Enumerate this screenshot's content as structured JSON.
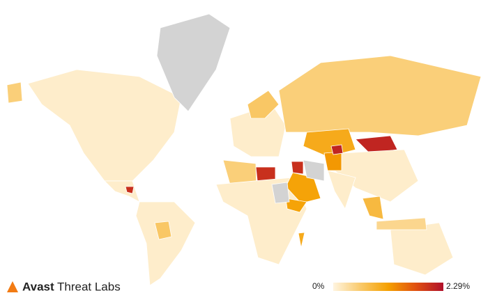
{
  "brand": {
    "name": "Avast",
    "product": "Threat Labs"
  },
  "map": {
    "values": [
      0.1,
      0.5,
      null,
      0.1,
      2.0,
      0.1,
      0.6,
      0.1,
      0.5,
      1.0,
      2.1,
      0.1,
      0.1,
      0.5,
      2.0,
      0.1,
      1.1,
      2.0,
      null,
      1.1,
      1.0,
      0.1,
      0.8,
      0.4,
      null,
      0.6,
      1.2,
      2.1
    ],
    "legend": {
      "ticks": [
        {
          "value": 0,
          "label": "0%"
        },
        {
          "value": 2.29,
          "label": "2.29%"
        }
      ],
      "colors": [
        "#fff5e0",
        "#f9c96a",
        "#f5a000",
        "#e05010",
        "#b0102a"
      ],
      "no_data_color": "#d3d3d3"
    }
  }
}
